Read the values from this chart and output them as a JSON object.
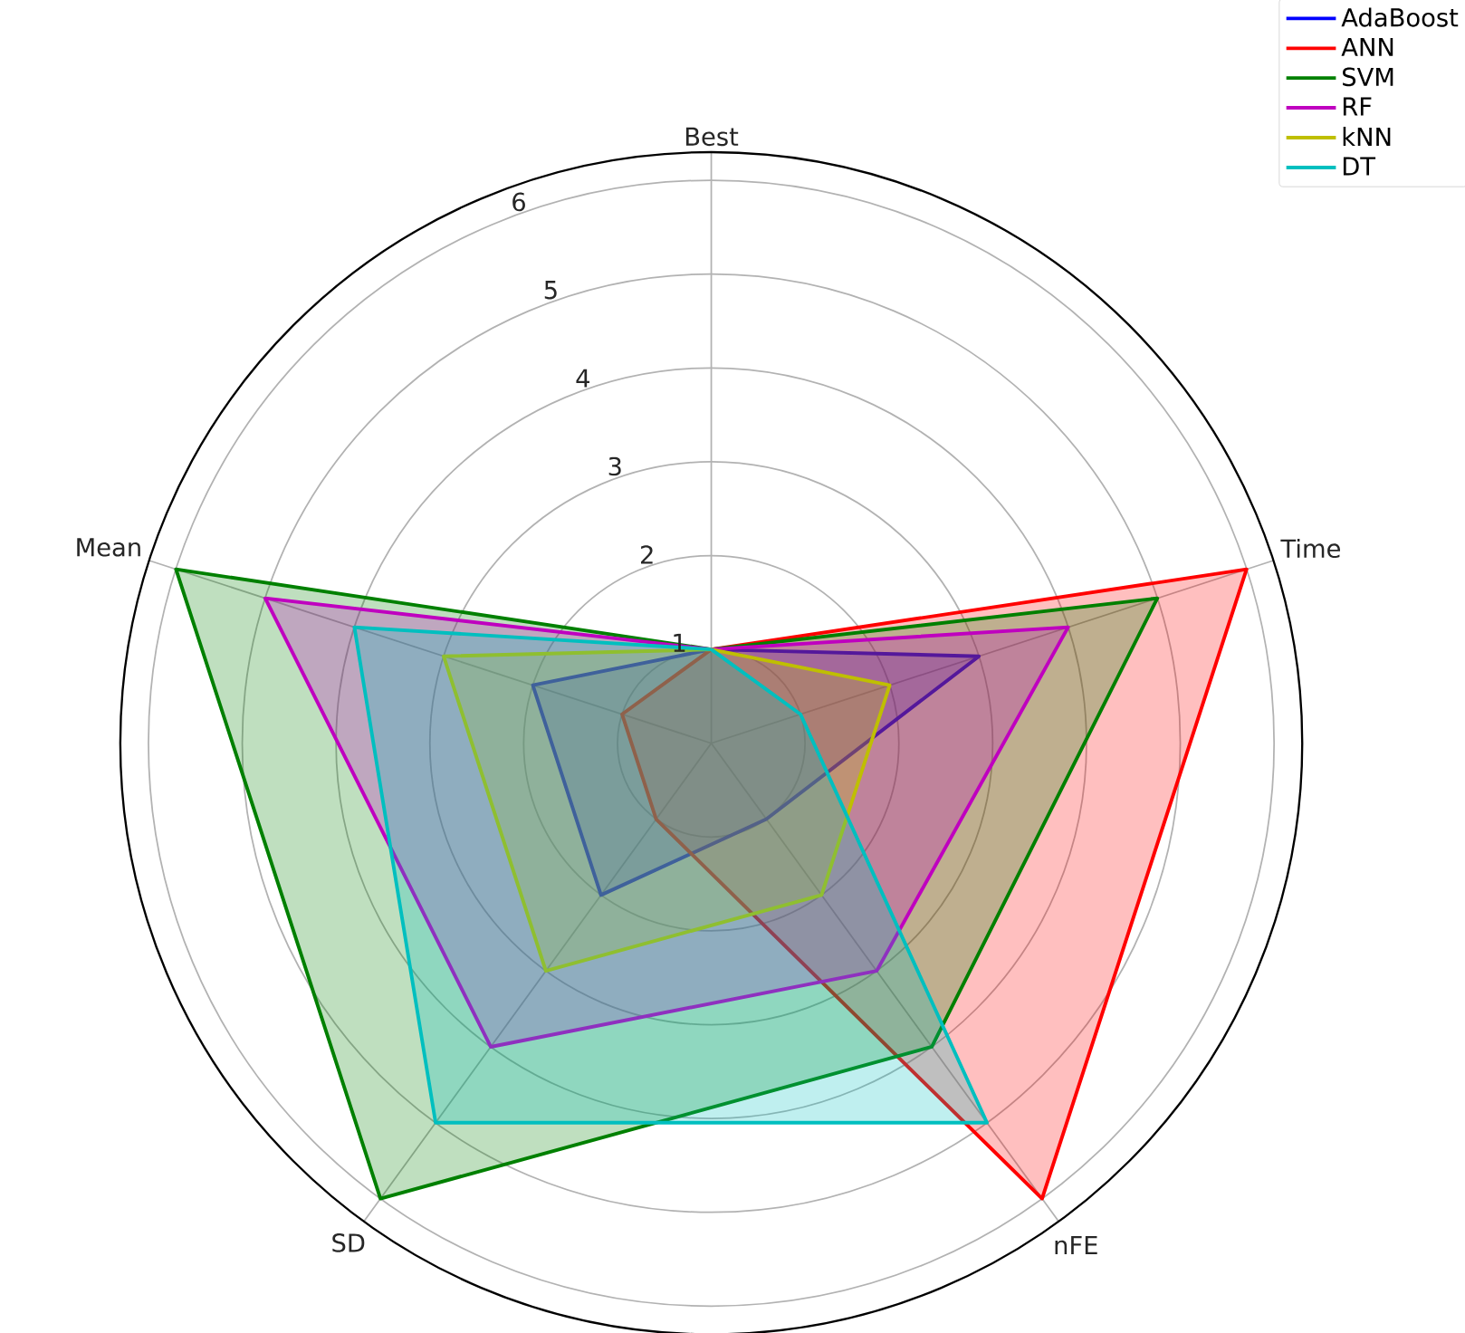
{
  "chart_data": {
    "type": "radar",
    "categories": [
      "Best",
      "Time",
      "nFE",
      "SD",
      "Mean"
    ],
    "series": [
      {
        "name": "AdaBoost",
        "color": "#0000ff",
        "values": [
          1,
          3,
          1,
          2,
          2
        ]
      },
      {
        "name": "ANN",
        "color": "#ff0000",
        "values": [
          1,
          6,
          6,
          1,
          1
        ]
      },
      {
        "name": "SVM",
        "color": "#008000",
        "values": [
          1,
          5,
          4,
          6,
          6
        ]
      },
      {
        "name": "RF",
        "color": "#bf00bf",
        "values": [
          1,
          4,
          3,
          4,
          5
        ]
      },
      {
        "name": "kNN",
        "color": "#bfbf00",
        "values": [
          1,
          2,
          2,
          3,
          3
        ]
      },
      {
        "name": "DT",
        "color": "#00bfbf",
        "values": [
          1,
          1,
          5,
          5,
          4
        ]
      }
    ],
    "ylim": [
      0,
      6.3
    ],
    "yticks": [
      1,
      2,
      3,
      4,
      5,
      6
    ],
    "grid": true,
    "legend": "top right"
  }
}
